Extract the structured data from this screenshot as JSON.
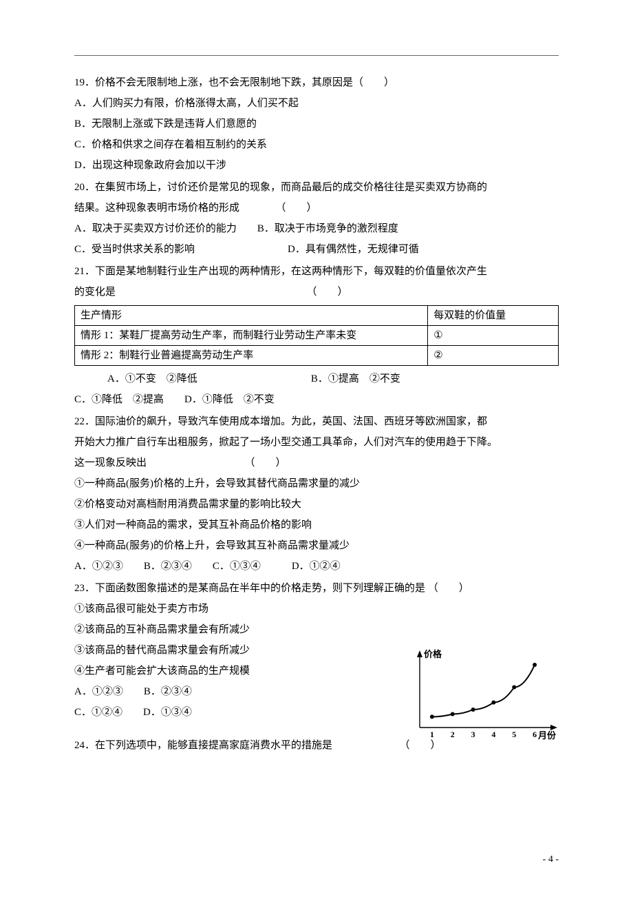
{
  "q19": {
    "stem": "19．价格不会无限制地上涨，也不会无限制地下跌，其原因是（　　）",
    "a": "A．人们购买力有限，价格涨得太高，人们买不起",
    "b": "B．无限制上涨或下跌是违背人们意愿的",
    "c": "C．价格和供求之间存在着相互制约的关系",
    "d": "D．出现这种现象政府会加以干涉"
  },
  "q20": {
    "stem1": "20．在集贸市场上，讨价还价是常见的现象，而商品最后的成交价格往往是买卖双方协商的",
    "stem2": "结果。这种现象表明市场价格的形成　　　　（　　）",
    "ab": "A．取决于买卖双方讨价还价的能力　　B．取决于市场竞争的激烈程度",
    "cd": "C．受当时供求关系的影响　　　　　　　　　D．具有偶然性，无规律可循"
  },
  "q21": {
    "stem1": "21．下面是某地制鞋行业生产出现的两种情形，在这两种情形下，每双鞋的价值量依次产生",
    "stem2": "的变化是　　　　　　　　　　　　　　　　　　　（　　）",
    "th1": "生产情形",
    "th2": "每双鞋的价值量",
    "r1c1": "情形 1：某鞋厂提高劳动生产率，而制鞋行业劳动生产率未变",
    "r1c2": "①",
    "r2c1": "情形 2：制鞋行业普遍提高劳动生产率",
    "r2c2": "②",
    "optsAB": "A．①不变　②降低　　　　　　　　　　　B．①提高　②不变",
    "optsCD": "C．①降低　②提高　　D．①降低　②不变"
  },
  "q22": {
    "stem1": "22．国际油价的飙升，导致汽车使用成本增加。为此，英国、法国、西班牙等欧洲国家，都",
    "stem2": "开始大力推广自行车出租服务，掀起了一场小型交通工具革命，人们对汽车的使用趋于下降。",
    "stem3": "这一现象反映出　　　　　　　　　　（　　）",
    "s1": "①一种商品(服务)价格的上升，会导致其替代商品需求量的减少",
    "s2": "②价格变动对高档耐用消费品需求量的影响比较大",
    "s3": "③人们对一种商品的需求，受其互补商品价格的影响",
    "s4": "④一种商品(服务)的价格上升，会导致其互补商品需求量减少",
    "opts": "A．①②③　　B．②③④　　C．①③④　　　D．①②④"
  },
  "q23": {
    "stem": "23．下面函数图象描述的是某商品在半年中的价格走势，则下列理解正确的是 （　　）",
    "s1": "①该商品很可能处于卖方市场",
    "s2": "②该商品的互补商品需求量会有所减少",
    "s3": "③该商品的替代商品需求量会有所减少",
    "s4": "④生产者可能会扩大该商品的生产规模",
    "optsAB": "A．①②③　　B．②③④",
    "optsCD": "C．①②④　　D．①③④"
  },
  "q24": {
    "stem": "24．在下列选项中，能够直接提高家庭消费水平的措施是　　　　　　　（　　）"
  },
  "chart": {
    "y_label": "价格",
    "x_label": "月份",
    "x_ticks": [
      "1",
      "2",
      "3",
      "4",
      "5",
      "6"
    ],
    "points": [
      {
        "x": 1,
        "y": 12
      },
      {
        "x": 2,
        "y": 15
      },
      {
        "x": 3,
        "y": 20
      },
      {
        "x": 4,
        "y": 28
      },
      {
        "x": 5,
        "y": 45
      },
      {
        "x": 6,
        "y": 70
      }
    ],
    "axis_color": "#000000",
    "line_color": "#000000",
    "point_color": "#000000",
    "label_fontsize": 13,
    "tick_fontsize": 12,
    "line_width": 2,
    "point_radius": 3,
    "y_range": [
      0,
      80
    ]
  },
  "footer": "- 4 -"
}
